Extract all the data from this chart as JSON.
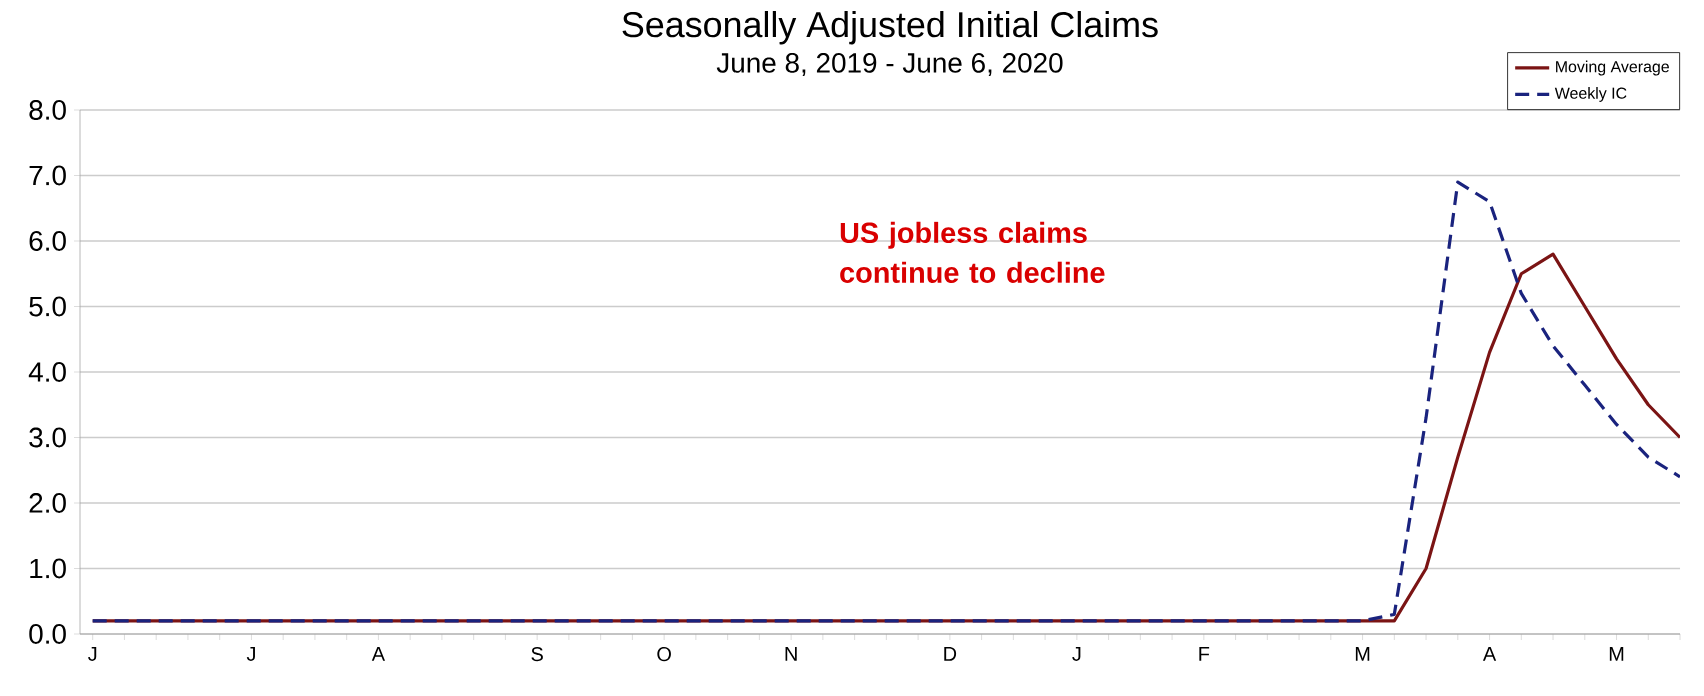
{
  "chart_data": {
    "type": "line",
    "title": "Seasonally Adjusted Initial Claims",
    "subtitle": "June 8, 2019 - June 6, 2020",
    "annotations": [
      "US jobless claims continue to decline"
    ],
    "categories": [
      "J",
      null,
      null,
      null,
      null,
      "J",
      null,
      null,
      null,
      "A",
      null,
      null,
      null,
      null,
      "S",
      null,
      null,
      null,
      "O",
      null,
      null,
      null,
      "N",
      null,
      null,
      null,
      null,
      "D",
      null,
      null,
      null,
      "J",
      null,
      null,
      null,
      "F",
      null,
      null,
      null,
      null,
      "M",
      null,
      null,
      null,
      "A",
      null,
      null,
      null,
      "M",
      null,
      null
    ],
    "series": [
      {
        "name": "Moving Average",
        "color": "#7b1414",
        "line_style": "solid",
        "values": [
          0.2,
          0.2,
          0.2,
          0.2,
          0.2,
          0.2,
          0.2,
          0.2,
          0.2,
          0.2,
          0.2,
          0.2,
          0.2,
          0.2,
          0.2,
          0.2,
          0.2,
          0.2,
          0.2,
          0.2,
          0.2,
          0.2,
          0.2,
          0.2,
          0.2,
          0.2,
          0.2,
          0.2,
          0.2,
          0.2,
          0.2,
          0.2,
          0.2,
          0.2,
          0.2,
          0.2,
          0.2,
          0.2,
          0.2,
          0.2,
          0.2,
          0.2,
          1.0,
          2.7,
          4.3,
          5.5,
          5.8,
          5.0,
          4.2,
          3.5,
          3.0
        ]
      },
      {
        "name": "Weekly IC",
        "color": "#1a237e",
        "line_style": "dashed",
        "values": [
          0.2,
          0.2,
          0.2,
          0.2,
          0.2,
          0.2,
          0.2,
          0.2,
          0.2,
          0.2,
          0.2,
          0.2,
          0.2,
          0.2,
          0.2,
          0.2,
          0.2,
          0.2,
          0.2,
          0.2,
          0.2,
          0.2,
          0.2,
          0.2,
          0.2,
          0.2,
          0.2,
          0.2,
          0.2,
          0.2,
          0.2,
          0.2,
          0.2,
          0.2,
          0.2,
          0.2,
          0.2,
          0.2,
          0.2,
          0.2,
          0.2,
          0.3,
          3.3,
          6.9,
          6.6,
          5.2,
          4.4,
          3.8,
          3.2,
          2.7,
          2.4
        ]
      }
    ],
    "ylim": [
      0,
      8
    ],
    "yticks": [
      {
        "value": 0,
        "label": "0.0"
      },
      {
        "value": 1,
        "label": "1.0"
      },
      {
        "value": 2,
        "label": "2.0"
      },
      {
        "value": 3,
        "label": "3.0"
      },
      {
        "value": 4,
        "label": "4.0"
      },
      {
        "value": 5,
        "label": "5.0"
      },
      {
        "value": 6,
        "label": "6.0"
      },
      {
        "value": 7,
        "label": "7.0"
      },
      {
        "value": 8,
        "label": "8.0"
      }
    ],
    "grid": "y",
    "legend": "top right",
    "marker": "none"
  }
}
